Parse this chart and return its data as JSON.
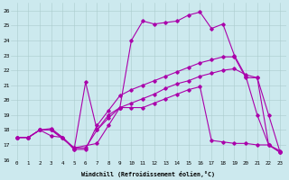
{
  "xlabel": "Windchill (Refroidissement éolien,°C)",
  "xlim": [
    -0.5,
    23.5
  ],
  "ylim": [
    16,
    26.5
  ],
  "yticks": [
    16,
    17,
    18,
    19,
    20,
    21,
    22,
    23,
    24,
    25,
    26
  ],
  "xticks": [
    0,
    1,
    2,
    3,
    4,
    5,
    6,
    7,
    8,
    9,
    10,
    11,
    12,
    13,
    14,
    15,
    16,
    17,
    18,
    19,
    20,
    21,
    22,
    23
  ],
  "bg_color": "#cce9ee",
  "line_color": "#aa00aa",
  "grid_color": "#aacccc",
  "line1_x": [
    0,
    1,
    2,
    3,
    5,
    7,
    8,
    9,
    10,
    11,
    12,
    13,
    14,
    15,
    16,
    17,
    18,
    19,
    20,
    21,
    22,
    23
  ],
  "line1_y": [
    17.5,
    17.5,
    18.0,
    18.0,
    16.8,
    17.1,
    18.3,
    19.5,
    24.0,
    25.3,
    25.1,
    25.2,
    25.3,
    25.7,
    25.9,
    24.8,
    25.1,
    23.0,
    21.6,
    19.0,
    17.0,
    16.5
  ],
  "line2_x": [
    0,
    1,
    2,
    3,
    4,
    5,
    6,
    7,
    8,
    9,
    10,
    11,
    12,
    13,
    14,
    15,
    16,
    17,
    18,
    19,
    20,
    21,
    22,
    23
  ],
  "line2_y": [
    17.5,
    17.5,
    18.0,
    18.1,
    17.5,
    16.7,
    16.7,
    18.3,
    19.3,
    20.3,
    20.7,
    21.0,
    21.3,
    21.6,
    21.9,
    22.2,
    22.5,
    22.7,
    22.9,
    22.9,
    21.5,
    21.5,
    19.0,
    16.5
  ],
  "line3_x": [
    0,
    1,
    2,
    3,
    4,
    5,
    6,
    7,
    8,
    9,
    10,
    11,
    12,
    13,
    14,
    15,
    16,
    17,
    18,
    19,
    20,
    21,
    22,
    23
  ],
  "line3_y": [
    17.5,
    17.5,
    18.0,
    18.0,
    17.5,
    16.8,
    16.8,
    18.0,
    18.8,
    19.5,
    19.8,
    20.1,
    20.4,
    20.8,
    21.1,
    21.3,
    21.6,
    21.8,
    22.0,
    22.1,
    21.7,
    21.5,
    17.0,
    16.5
  ],
  "line4_x": [
    0,
    1,
    2,
    3,
    4,
    5,
    6,
    7,
    8,
    9,
    10,
    11,
    12,
    13,
    14,
    15,
    16,
    17,
    18,
    19,
    20,
    21,
    22,
    23
  ],
  "line4_y": [
    17.5,
    17.5,
    18.0,
    17.6,
    17.5,
    16.7,
    21.2,
    18.0,
    19.0,
    19.5,
    19.5,
    19.5,
    19.8,
    20.1,
    20.4,
    20.7,
    20.9,
    17.3,
    17.2,
    17.1,
    17.1,
    17.0,
    17.0,
    16.6
  ]
}
